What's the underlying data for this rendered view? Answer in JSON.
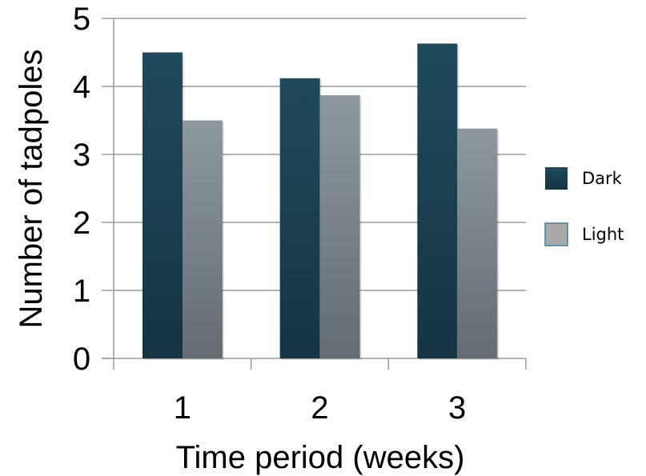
{
  "chart_data": {
    "type": "bar",
    "categories": [
      "1",
      "2",
      "3"
    ],
    "series": [
      {
        "name": "Dark",
        "values": [
          4.5,
          4.12,
          4.63
        ],
        "color": "#1d4556"
      },
      {
        "name": "Light",
        "values": [
          3.5,
          3.87,
          3.38
        ],
        "color": "#8a959c"
      }
    ],
    "xlabel": "Time period (weeks)",
    "ylabel": "Number of tadpoles",
    "ylim": [
      0,
      5
    ],
    "yticks": [
      "0",
      "1",
      "2",
      "3",
      "4",
      "5"
    ],
    "grid": true,
    "legend_position": "right"
  }
}
